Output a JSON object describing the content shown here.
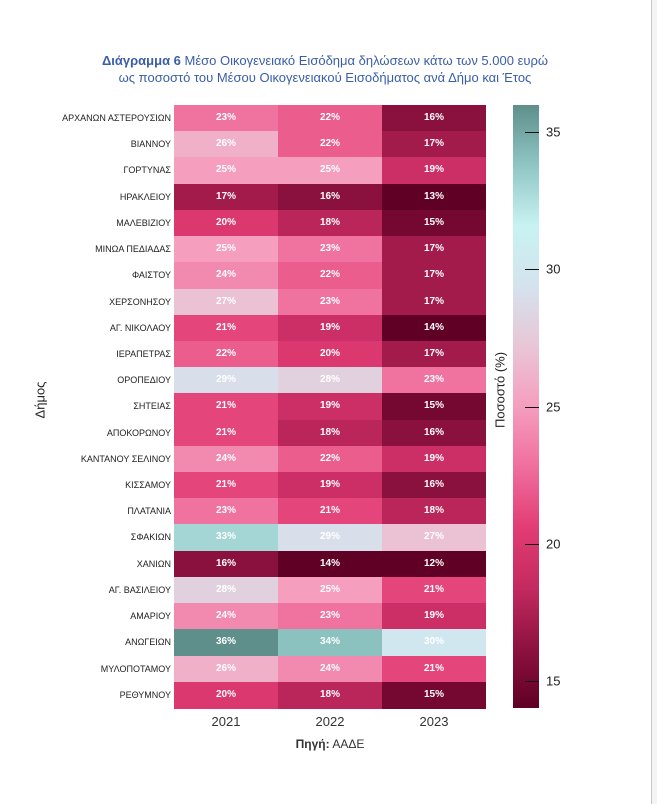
{
  "title": {
    "prefix": "Διάγραμμα  6",
    "line1": " Μέσο Οικογενειακό Εισόδημα δηλώσεων κάτω των 5.000 ευρώ",
    "line2": "ως ποσοστό του Μέσου Οικογενειακού Εισοδήματος ανά Δήμο και Έτος"
  },
  "source": {
    "label": "Πηγή:",
    "value": " ΑΑΔΕ"
  },
  "chart_data": {
    "type": "heatmap",
    "title": "Διάγραμμα 6 Μέσο Οικογενειακό Εισόδημα δηλώσεων κάτω των 5.000 ευρώ ως ποσοστό του Μέσου Οικογενειακού Εισοδήματος ανά Δήμο και Έτος",
    "xlabel": "",
    "ylabel": "Δήμος",
    "colorbar_label": "Ποσοστό (%)",
    "colorbar_range": [
      14,
      36
    ],
    "colorbar_ticks": [
      15,
      20,
      25,
      30,
      35
    ],
    "x": [
      "2021",
      "2022",
      "2023"
    ],
    "y": [
      "ΑΡΧΑΝΩΝ ΑΣΤΕΡΟΥΣΙΩΝ",
      "ΒΙΑΝΝΟΥ",
      "ΓΟΡΤΥΝΑΣ",
      "ΗΡΑΚΛΕΙΟΥ",
      "ΜΑΛΕΒΙΖΙΟΥ",
      "ΜΙΝΩΑ ΠΕΔΙΑΔΑΣ",
      "ΦΑΙΣΤΟΥ",
      "ΧΕΡΣΟΝΗΣΟΥ",
      "ΑΓ. ΝΙΚΟΛΑΟΥ",
      "ΙΕΡΑΠΕΤΡΑΣ",
      "ΟΡΟΠΕΔΙΟΥ",
      "ΣΗΤΕΙΑΣ",
      "ΑΠΟΚΟΡΩΝΟΥ",
      "ΚΑΝΤΑΝΟΥ ΣΕΛΙΝΟΥ",
      "ΚΙΣΣΑΜΟΥ",
      "ΠΛΑΤΑΝΙΑ",
      "ΣΦΑΚΙΩΝ",
      "ΧΑΝΙΩΝ",
      "ΑΓ. ΒΑΣΙΛΕΙΟΥ",
      "ΑΜΑΡΙΟΥ",
      "ΑΝΩΓΕΙΩΝ",
      "ΜΥΛΟΠΟΤΑΜΟΥ",
      "ΡΕΘΥΜΝΟΥ"
    ],
    "values": [
      [
        23,
        22,
        16
      ],
      [
        26,
        22,
        17
      ],
      [
        25,
        25,
        19
      ],
      [
        17,
        16,
        13
      ],
      [
        20,
        18,
        15
      ],
      [
        25,
        23,
        17
      ],
      [
        24,
        22,
        17
      ],
      [
        27,
        23,
        17
      ],
      [
        21,
        19,
        14
      ],
      [
        22,
        20,
        17
      ],
      [
        29,
        28,
        23
      ],
      [
        21,
        19,
        15
      ],
      [
        21,
        18,
        16
      ],
      [
        24,
        22,
        19
      ],
      [
        21,
        19,
        16
      ],
      [
        23,
        21,
        18
      ],
      [
        33,
        29,
        27
      ],
      [
        16,
        14,
        12
      ],
      [
        28,
        25,
        21
      ],
      [
        24,
        23,
        19
      ],
      [
        36,
        34,
        30
      ],
      [
        26,
        24,
        21
      ],
      [
        20,
        18,
        15
      ]
    ],
    "value_suffix": "%",
    "colormap": [
      "#5f0024",
      "#8e123f",
      "#c42a5f",
      "#e23d74",
      "#ef6f9c",
      "#f59ebd",
      "#e9c6d6",
      "#d4e3ee",
      "#c8f2f2",
      "#8fc6c4",
      "#5e8f8b"
    ]
  }
}
